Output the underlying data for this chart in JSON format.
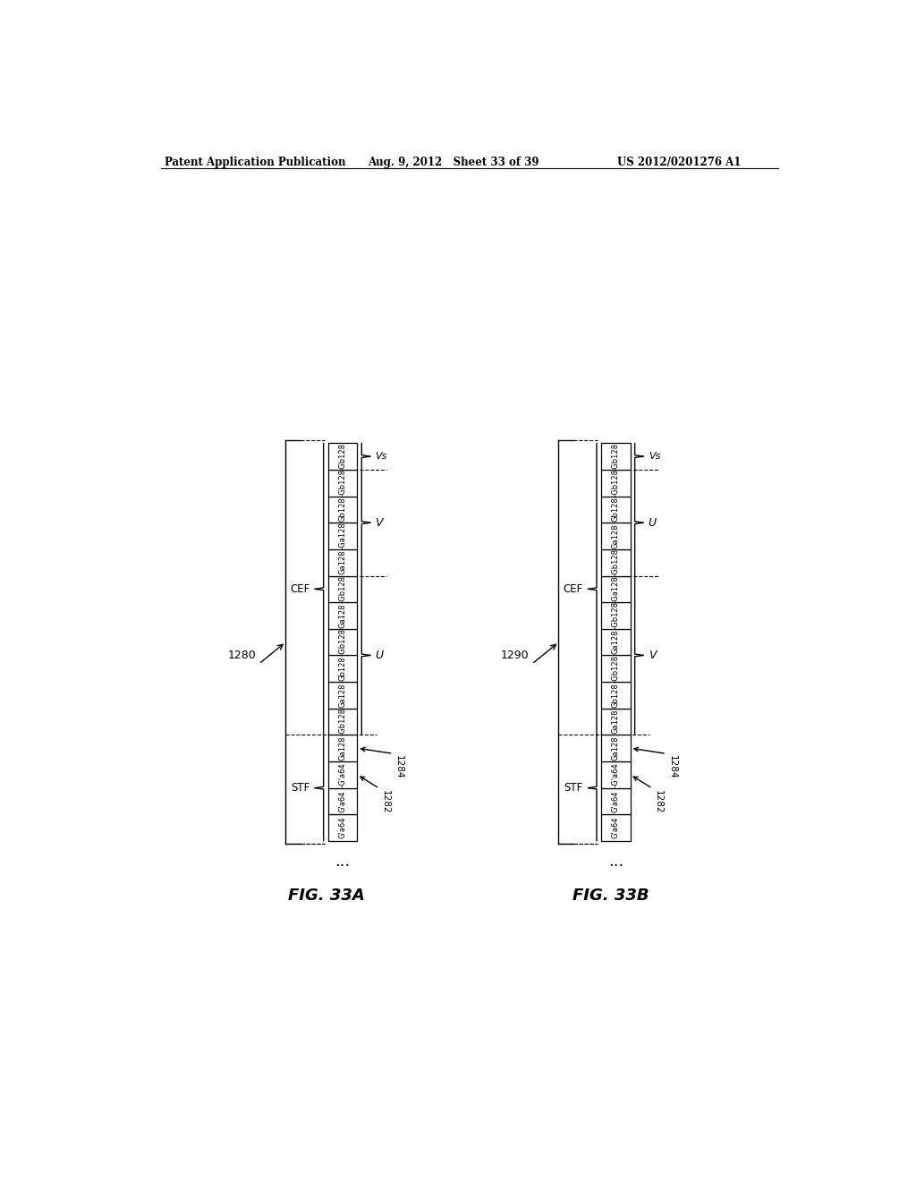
{
  "header_left": "Patent Application Publication",
  "header_mid": "Aug. 9, 2012   Sheet 33 of 39",
  "header_right": "US 2012/0201276 A1",
  "fig_a_label": "FIG. 33A",
  "fig_b_label": "FIG. 33B",
  "label_1280": "1280",
  "label_1282": "1282",
  "label_1284": "1284",
  "label_1290": "1290",
  "bg_color": "#ffffff",
  "cells_a_right": [
    "G'a64",
    "G'a64",
    "-G'a64",
    "Ga128",
    "-Gb128",
    "Ga128",
    "Gb128",
    "-Gb128",
    "Ga128",
    "-Gb128",
    "Ga128",
    "-Ga128",
    "Gb128",
    "-Gb128",
    "-Gb128"
  ],
  "cells_b_right": [
    "G'a64",
    "G'a64",
    "-G'a64",
    "Ga128",
    "Ga128",
    "Gb128",
    "-Gb128",
    "Ga128",
    "-Gb128",
    "-Ga128",
    "-Gb128",
    "Ga128",
    "Gb128",
    "-Gb128",
    "-Gb128"
  ],
  "stf_range": [
    0,
    3
  ],
  "cef_range": [
    4,
    14
  ],
  "a_u_range": [
    4,
    9
  ],
  "a_v_range": [
    10,
    13
  ],
  "a_vs_range": [
    14,
    14
  ],
  "b_v_range": [
    4,
    9
  ],
  "b_u_range": [
    10,
    13
  ],
  "b_vs_range": [
    14,
    14
  ]
}
